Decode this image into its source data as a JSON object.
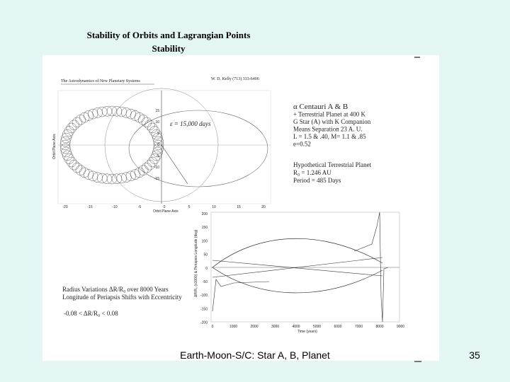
{
  "slide": {
    "title": "Stability of Orbits and Lagrangian Points",
    "subtitle": "Stability",
    "footer": "Earth-Moon-S/C: Star A, B, Planet",
    "page_number": "35"
  },
  "scan": {
    "header": "The Astrodynamics of New Planetary Systems",
    "author": "W. D. Kelly     (713) 333-6406",
    "orbit_annotation": "ε = 15,000 days",
    "orbit_plot": {
      "xticks": [
        "-20",
        "-15",
        "-10",
        "-5",
        "0",
        "5",
        "10",
        "15",
        "20"
      ],
      "yticks": [
        "15",
        "10",
        "5",
        "0",
        "-5",
        "-10",
        "-15"
      ],
      "xlabel": "Orbit Plane Axis",
      "ylabel": "Orbit Plane Axis"
    },
    "system_text": [
      "α Centauri A & B",
      "+ Terrestrial Planet at 400 K",
      "G Star (A) with K Companion",
      "Means Separation 23 A. U.",
      "L = 1.5 & .40,   M= 1.1 & .85",
      "e=0.52"
    ],
    "planet_text": [
      "Hypothetical Terrestrial Planet",
      "R₀        = 1.246 AU",
      "Period =  485 Days"
    ],
    "variation_text": [
      "Radius Variations ΔR/R₀ over 8000 Years",
      "Longitude of Periapsis Shifts with Eccentricity",
      "-0.08 < ΔR/R₀ < 0.08"
    ],
    "radius_plot": {
      "yticks": [
        "200",
        "150",
        "100",
        "50",
        "0",
        "-50",
        "-100",
        "-150",
        "-200"
      ],
      "xticks": [
        "0",
        "1000",
        "2000",
        "3000",
        "4000",
        "5000",
        "6000",
        "7000",
        "8000",
        "9000"
      ],
      "xlabel": "Time (years)",
      "ylabel": "ΔR/R₀ (x1000) & Periapsis Longitude (deg)"
    }
  }
}
